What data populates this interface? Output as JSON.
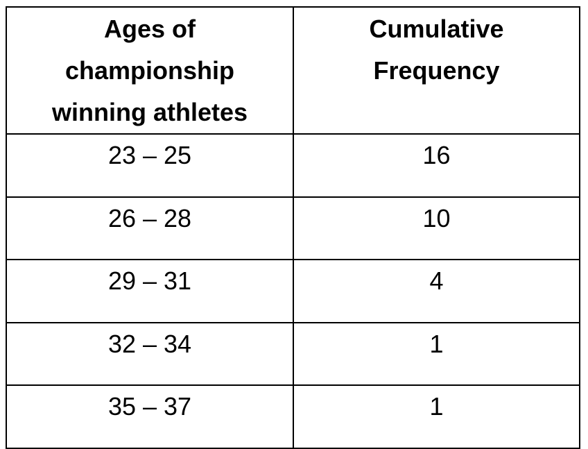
{
  "table": {
    "headers": [
      {
        "lines": [
          "Ages of",
          "championship",
          "winning athletes"
        ]
      },
      {
        "lines": [
          "Cumulative",
          "Frequency"
        ]
      }
    ],
    "rows": [
      {
        "age_range": "23 – 25",
        "cumulative_frequency": "16"
      },
      {
        "age_range": "26 – 28",
        "cumulative_frequency": "10"
      },
      {
        "age_range": "29 – 31",
        "cumulative_frequency": "4"
      },
      {
        "age_range": "32 – 34",
        "cumulative_frequency": "1"
      },
      {
        "age_range": "35 – 37",
        "cumulative_frequency": "1"
      }
    ]
  }
}
